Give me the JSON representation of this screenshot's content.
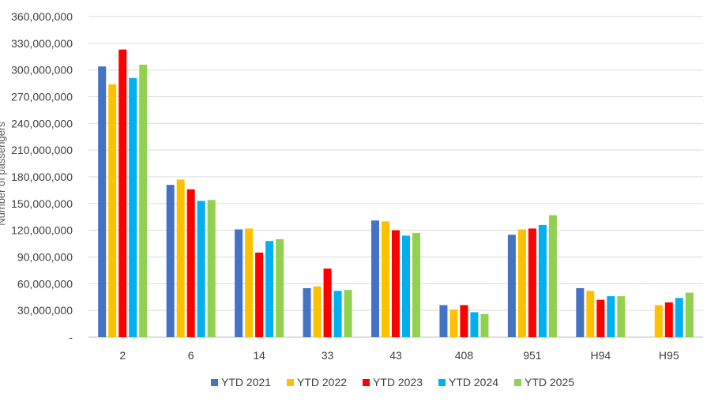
{
  "chart_data": {
    "type": "bar",
    "title": "",
    "xlabel": "",
    "ylabel": "Number of passengers",
    "ylim": [
      0,
      360000000
    ],
    "y_ticks": [
      "-",
      "30,000,000",
      "60,000,000",
      "90,000,000",
      "120,000,000",
      "150,000,000",
      "180,000,000",
      "210,000,000",
      "240,000,000",
      "270,000,000",
      "300,000,000",
      "330,000,000",
      "360,000,000"
    ],
    "y_tick_values": [
      0,
      30000000,
      60000000,
      90000000,
      120000000,
      150000000,
      180000000,
      210000000,
      240000000,
      270000000,
      300000000,
      330000000,
      360000000
    ],
    "grid": true,
    "legend_position": "bottom",
    "categories": [
      "2",
      "6",
      "14",
      "33",
      "43",
      "408",
      "951",
      "H94",
      "H95"
    ],
    "series": [
      {
        "name": "YTD 2021",
        "color": "#4472C4",
        "values": [
          304000000,
          171000000,
          121000000,
          55000000,
          131000000,
          36000000,
          115000000,
          55000000,
          null
        ]
      },
      {
        "name": "YTD 2022",
        "color": "#FFC000",
        "values": [
          284000000,
          177000000,
          122000000,
          57000000,
          130000000,
          31000000,
          121000000,
          52000000,
          36000000
        ]
      },
      {
        "name": "YTD 2023",
        "color": "#FF0000",
        "values": [
          323000000,
          166000000,
          95000000,
          77000000,
          120000000,
          36000000,
          122000000,
          42000000,
          39000000
        ]
      },
      {
        "name": "YTD 2024",
        "color": "#00B0F0",
        "values": [
          291000000,
          153000000,
          108000000,
          52000000,
          114000000,
          28000000,
          126000000,
          46000000,
          44000000
        ]
      },
      {
        "name": "YTD 2025",
        "color": "#92D050",
        "values": [
          306000000,
          154000000,
          110000000,
          53000000,
          117000000,
          26000000,
          137000000,
          46000000,
          50000000
        ]
      }
    ]
  }
}
